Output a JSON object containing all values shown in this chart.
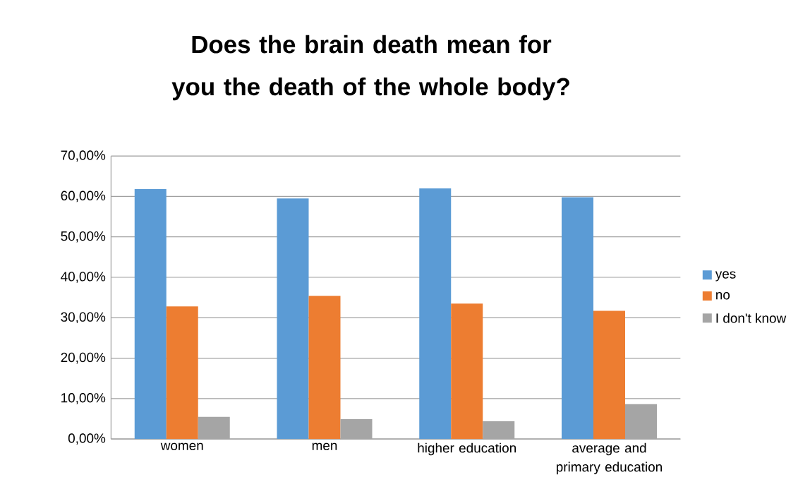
{
  "chart_data": {
    "type": "bar",
    "title": "Does the brain death mean for you the death of the whole body?",
    "categories": [
      "women",
      "men",
      "higher education",
      "average and primary education"
    ],
    "series": [
      {
        "name": "yes",
        "color": "#5b9bd5",
        "values": [
          61.8,
          59.5,
          62.0,
          59.8
        ]
      },
      {
        "name": "no",
        "color": "#ed7d31",
        "values": [
          32.8,
          35.4,
          33.5,
          31.7
        ]
      },
      {
        "name": "I don't know",
        "color": "#a5a5a5",
        "values": [
          5.5,
          4.9,
          4.4,
          8.6
        ]
      }
    ],
    "ylim": [
      0,
      70
    ],
    "yticks": [
      {
        "value": 0,
        "label": "0,00%"
      },
      {
        "value": 10,
        "label": "10,00%"
      },
      {
        "value": 20,
        "label": "20,00%"
      },
      {
        "value": 30,
        "label": "30,00%"
      },
      {
        "value": 40,
        "label": "40,00%"
      },
      {
        "value": 50,
        "label": "50,00%"
      },
      {
        "value": 60,
        "label": "60,00%"
      },
      {
        "value": 70,
        "label": "70,00%"
      }
    ],
    "grid": "y",
    "legend": "right"
  }
}
